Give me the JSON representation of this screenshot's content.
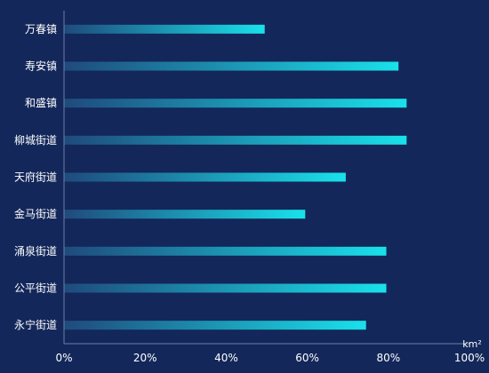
{
  "chart_data": {
    "type": "bar",
    "orientation": "horizontal",
    "categories": [
      "万春镇",
      "寿安镇",
      "和盛镇",
      "柳城街道",
      "天府街道",
      "金马街道",
      "涌泉街道",
      "公平街道",
      "永宁街道"
    ],
    "values": [
      49.5,
      82.5,
      84.5,
      84.5,
      69.5,
      59.5,
      79.5,
      79.5,
      74.5
    ],
    "x_ticks": [
      "0%",
      "20%",
      "40%",
      "60%",
      "80%",
      "100%"
    ],
    "xlim": [
      0,
      100
    ],
    "unit": "km²",
    "grid": false,
    "bar_gradient": {
      "start": "#1f4a7c",
      "end": "#19e1ea"
    },
    "colors": {
      "background": "#13275a",
      "axis": "#6f7ea8",
      "text": "#ffffff"
    }
  }
}
